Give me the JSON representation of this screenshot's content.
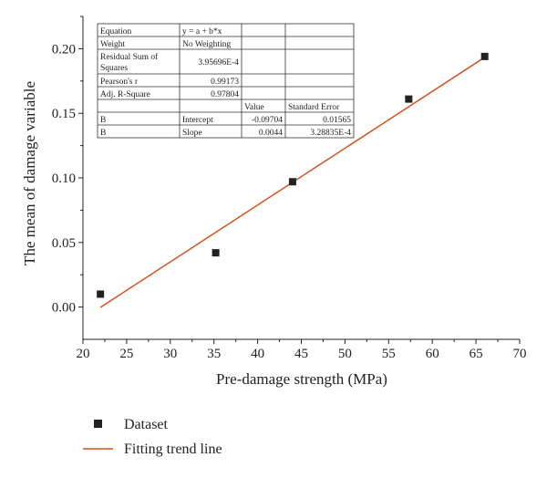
{
  "chart_data": {
    "type": "scatter",
    "xlabel": "Pre-damage strength (MPa)",
    "ylabel": "The mean of damage variable",
    "xlim": [
      20,
      70
    ],
    "ylim": [
      -0.025,
      0.225
    ],
    "x_ticks": [
      "20",
      "25",
      "30",
      "35",
      "40",
      "45",
      "50",
      "55",
      "60",
      "65",
      "70"
    ],
    "y_ticks": [
      "0.00",
      "0.05",
      "0.10",
      "0.15",
      "0.20"
    ],
    "grid": false,
    "legend_position": "bottom-left",
    "series": [
      {
        "name": "Dataset",
        "kind": "scatter",
        "marker": "square",
        "color": "#222222",
        "points": [
          {
            "x": 22.0,
            "y": 0.01
          },
          {
            "x": 35.2,
            "y": 0.042
          },
          {
            "x": 44.0,
            "y": 0.097
          },
          {
            "x": 57.3,
            "y": 0.161
          },
          {
            "x": 66.0,
            "y": 0.194
          }
        ]
      },
      {
        "name": "Fitting trend line",
        "kind": "line",
        "color": "#d4521e",
        "intercept": -0.09704,
        "slope": 0.0044,
        "x_range": [
          22.0,
          66.0
        ]
      }
    ],
    "fit_table": {
      "rows": [
        [
          "Equation",
          "y = a + b*x",
          "",
          ""
        ],
        [
          "Weight",
          "No Weighting",
          "",
          ""
        ],
        [
          "Residual Sum of Squares",
          "3.95696E-4",
          "",
          ""
        ],
        [
          "Pearson's r",
          "0.99173",
          "",
          ""
        ],
        [
          "Adj. R-Square",
          "0.97804",
          "",
          ""
        ],
        [
          "",
          "",
          "Value",
          "Standard Error"
        ],
        [
          "B",
          "Intercept",
          "-0.09704",
          "0.01565"
        ],
        [
          "B",
          "Slope",
          "0.0044",
          "3.28835E-4"
        ]
      ]
    }
  }
}
